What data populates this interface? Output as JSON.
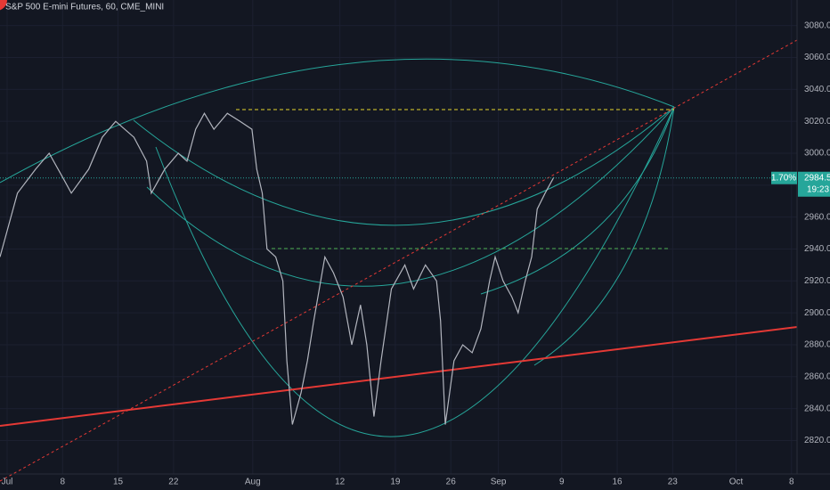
{
  "chart_data": {
    "type": "line",
    "title": "S&P 500 E-mini Futures, 60, CME_MINI",
    "x": [
      -0.9,
      1.3,
      3.6,
      5.3,
      7.0,
      8.1,
      10.3,
      12.0,
      13.7,
      16.0,
      17.6,
      18.2,
      19.9,
      21.6,
      22.7,
      23.8,
      24.9,
      26.1,
      27.8,
      29.4,
      30.9,
      31.5,
      32.2,
      32.8,
      33.9,
      34.8,
      35.3,
      36.0,
      37.1,
      37.9,
      38.7,
      40.1,
      41.2,
      42.4,
      43.5,
      44.6,
      45.4,
      46.3,
      47.2,
      48.5,
      50.2,
      51.3,
      52.8,
      54.2,
      54.7,
      55.3,
      56.4,
      57.5,
      58.7,
      59.8,
      60.9,
      61.6,
      62.6,
      63.7,
      64.5,
      65.4,
      66.2,
      66.9,
      67.9,
      69.0
    ],
    "series": [
      {
        "name": "S&P 500 E-mini Futures",
        "color": "#b2b5be",
        "values": [
          2935,
          2975,
          2990,
          3000,
          2985,
          2975,
          2990,
          3010,
          3020,
          3010,
          2995,
          2975,
          2990,
          3000,
          2995,
          3015,
          3025,
          3015,
          3025,
          3020,
          3015,
          2990,
          2975,
          2940,
          2935,
          2920,
          2870,
          2830,
          2850,
          2870,
          2895,
          2935,
          2925,
          2910,
          2880,
          2905,
          2880,
          2835,
          2870,
          2915,
          2930,
          2915,
          2930,
          2920,
          2895,
          2830,
          2870,
          2880,
          2875,
          2890,
          2920,
          2935,
          2920,
          2910,
          2900,
          2920,
          2935,
          2965,
          2975,
          2985
        ]
      }
    ],
    "xlim": [
      -0.9,
      99.7
    ],
    "xticks": [
      {
        "value": 0,
        "label": "Jul"
      },
      {
        "value": 7,
        "label": "8"
      },
      {
        "value": 14,
        "label": "15"
      },
      {
        "value": 21,
        "label": "22"
      },
      {
        "value": 31,
        "label": "Aug"
      },
      {
        "value": 42,
        "label": "12"
      },
      {
        "value": 49,
        "label": "19"
      },
      {
        "value": 56,
        "label": "26"
      },
      {
        "value": 62,
        "label": "Sep"
      },
      {
        "value": 70,
        "label": "9"
      },
      {
        "value": 77,
        "label": "16"
      },
      {
        "value": 84,
        "label": "23"
      },
      {
        "value": 92,
        "label": "Oct"
      },
      {
        "value": 99,
        "label": "8"
      }
    ],
    "ylim": [
      2789,
      3096
    ],
    "yticks": [
      {
        "value": 2820,
        "label": "2820.0"
      },
      {
        "value": 2840,
        "label": "2840.0"
      },
      {
        "value": 2860,
        "label": "2860.0"
      },
      {
        "value": 2880,
        "label": "2880.0"
      },
      {
        "value": 2900,
        "label": "2900.0"
      },
      {
        "value": 2920,
        "label": "2920.0"
      },
      {
        "value": 2940,
        "label": "2940.0"
      },
      {
        "value": 2960,
        "label": "2960.0"
      },
      {
        "value": 2980,
        "label": "2980.0"
      },
      {
        "value": 3000,
        "label": "3000.0"
      },
      {
        "value": 3020,
        "label": "3020.0"
      },
      {
        "value": 3040,
        "label": "3040.0"
      },
      {
        "value": 3060,
        "label": "3060.0"
      },
      {
        "value": 3080,
        "label": "3080.0"
      }
    ],
    "grid": true,
    "last_price": {
      "value": 2984.5,
      "label": "2984.5"
    },
    "change_label": "1.70%",
    "countdown": "19:23"
  }
}
